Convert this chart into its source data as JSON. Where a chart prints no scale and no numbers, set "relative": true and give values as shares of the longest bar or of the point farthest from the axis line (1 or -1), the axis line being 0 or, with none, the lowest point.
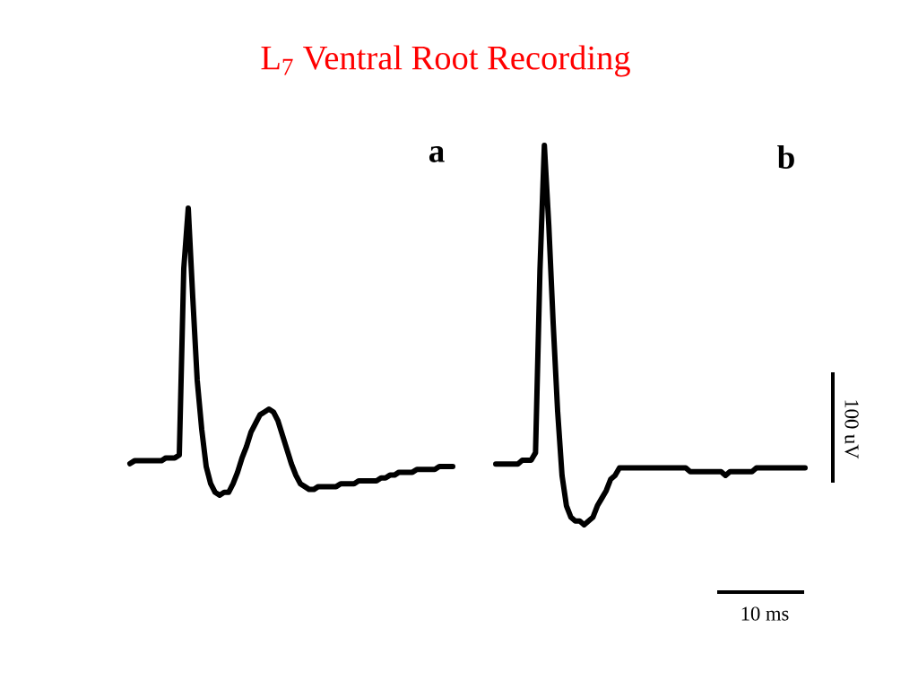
{
  "chart_data": [
    {
      "type": "line",
      "title": "L$_{7}$ Ventral Root Recording",
      "annotations": [
        "a"
      ],
      "relative": true,
      "categories": [
        null,
        null,
        null,
        null,
        null,
        null,
        null,
        null,
        null,
        null,
        null,
        null,
        null,
        null,
        null,
        null,
        null,
        null,
        null,
        null,
        null,
        null,
        null,
        null,
        null,
        null,
        null,
        null,
        null,
        null,
        null,
        null,
        null,
        null,
        null,
        null,
        null,
        null,
        null,
        null,
        null,
        null,
        null,
        null,
        null,
        null,
        null,
        null,
        null,
        null,
        null,
        null,
        null,
        null,
        null,
        null,
        null,
        null,
        null,
        null,
        null,
        null,
        null,
        null,
        null,
        null,
        null,
        null,
        null,
        null,
        null,
        null,
        null
      ],
      "series": [
        {
          "color": "#000000",
          "values": [
            0.11,
            0.12,
            0.12,
            0.12,
            0.12,
            0.12,
            0.12,
            0.12,
            0.13,
            0.13,
            0.13,
            0.14,
            0.79,
            1,
            0.69,
            0.4,
            0.23,
            0.1,
            0.04,
            0.01,
            0,
            0.01,
            0.01,
            0.04,
            0.08,
            0.13,
            0.17,
            0.22,
            0.25,
            0.28,
            0.29,
            0.3,
            0.29,
            0.26,
            0.21,
            0.16,
            0.11,
            0.07,
            0.04,
            0.03,
            0.02,
            0.02,
            0.03,
            0.03,
            0.03,
            0.03,
            0.03,
            0.04,
            0.04,
            0.04,
            0.04,
            0.05,
            0.05,
            0.05,
            0.05,
            0.05,
            0.06,
            0.06,
            0.07,
            0.07,
            0.08,
            0.08,
            0.08,
            0.08,
            0.09,
            0.09,
            0.09,
            0.09,
            0.09,
            0.1,
            0.1,
            0.1,
            0.1
          ]
        }
      ]
    },
    {
      "type": "line",
      "annotations": [
        "b",
        "100 uV",
        "10 ms"
      ],
      "relative": true,
      "categories": [
        null,
        null,
        null,
        null,
        null,
        null,
        null,
        null,
        null,
        null,
        null,
        null,
        null,
        null,
        null,
        null,
        null,
        null,
        null,
        null,
        null,
        null,
        null,
        null,
        null,
        null,
        null,
        null,
        null,
        null,
        null,
        null,
        null,
        null,
        null,
        null,
        null,
        null,
        null,
        null,
        null,
        null,
        null,
        null,
        null,
        null,
        null,
        null,
        null,
        null,
        null,
        null,
        null,
        null,
        null,
        null,
        null,
        null,
        null,
        null,
        null,
        null,
        null,
        null,
        null,
        null,
        null,
        null,
        null,
        null,
        null
      ],
      "series": [
        {
          "color": "#000000",
          "values": [
            0.16,
            0.16,
            0.16,
            0.16,
            0.16,
            0.16,
            0.17,
            0.17,
            0.17,
            0.19,
            0.67,
            1,
            0.79,
            0.53,
            0.3,
            0.13,
            0.05,
            0.02,
            0.01,
            0.01,
            0,
            0.01,
            0.02,
            0.05,
            0.07,
            0.09,
            0.12,
            0.13,
            0.15,
            0.15,
            0.15,
            0.15,
            0.15,
            0.15,
            0.15,
            0.15,
            0.15,
            0.15,
            0.15,
            0.15,
            0.15,
            0.15,
            0.15,
            0.15,
            0.14,
            0.14,
            0.14,
            0.14,
            0.14,
            0.14,
            0.14,
            0.14,
            0.13,
            0.14,
            0.14,
            0.14,
            0.14,
            0.14,
            0.14,
            0.15,
            0.15,
            0.15,
            0.15,
            0.15,
            0.15,
            0.15,
            0.15,
            0.15,
            0.15,
            0.15,
            0.15
          ]
        }
      ]
    }
  ]
}
